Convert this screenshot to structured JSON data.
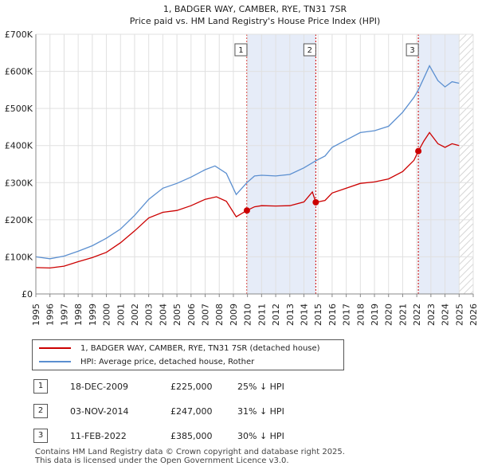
{
  "chart_data": {
    "type": "line",
    "title": "1, BADGER WAY, CAMBER, RYE, TN31 7SR",
    "subtitle": "Price paid vs. HM Land Registry's House Price Index (HPI)",
    "xlim": [
      1995,
      2026
    ],
    "ylim": [
      0,
      700000
    ],
    "x_ticks": [
      "1995",
      "1996",
      "1997",
      "1998",
      "1999",
      "2000",
      "2001",
      "2002",
      "2003",
      "2004",
      "2005",
      "2006",
      "2007",
      "2008",
      "2009",
      "2010",
      "2011",
      "2012",
      "2013",
      "2014",
      "2015",
      "2016",
      "2017",
      "2018",
      "2019",
      "2020",
      "2021",
      "2022",
      "2023",
      "2024",
      "2025",
      "2026"
    ],
    "y_ticks": [
      {
        "value": 0,
        "label": "£0"
      },
      {
        "value": 100000,
        "label": "£100K"
      },
      {
        "value": 200000,
        "label": "£200K"
      },
      {
        "value": 300000,
        "label": "£300K"
      },
      {
        "value": 400000,
        "label": "£400K"
      },
      {
        "value": 500000,
        "label": "£500K"
      },
      {
        "value": 600000,
        "label": "£600K"
      },
      {
        "value": 700000,
        "label": "£700K"
      }
    ],
    "grid": true,
    "legend_position": "bottom",
    "series": [
      {
        "name": "1, BADGER WAY, CAMBER, RYE, TN31 7SR (detached house)",
        "color": "#cc0000",
        "points": [
          [
            1995,
            71000
          ],
          [
            1996,
            70000
          ],
          [
            1997,
            75000
          ],
          [
            1998,
            87000
          ],
          [
            1999,
            98000
          ],
          [
            2000,
            112000
          ],
          [
            2001,
            138000
          ],
          [
            2002,
            170000
          ],
          [
            2003,
            205000
          ],
          [
            2004,
            220000
          ],
          [
            2005,
            225000
          ],
          [
            2006,
            238000
          ],
          [
            2007,
            255000
          ],
          [
            2007.8,
            262000
          ],
          [
            2008.5,
            250000
          ],
          [
            2009.2,
            208000
          ],
          [
            2009.96,
            225000
          ],
          [
            2010.5,
            235000
          ],
          [
            2011,
            238000
          ],
          [
            2012,
            237000
          ],
          [
            2013,
            238000
          ],
          [
            2014,
            248000
          ],
          [
            2014.6,
            275000
          ],
          [
            2014.84,
            247000
          ],
          [
            2015.5,
            252000
          ],
          [
            2016,
            272000
          ],
          [
            2017,
            285000
          ],
          [
            2018,
            298000
          ],
          [
            2019,
            302000
          ],
          [
            2020,
            310000
          ],
          [
            2021,
            330000
          ],
          [
            2021.8,
            360000
          ],
          [
            2022.11,
            385000
          ],
          [
            2022.5,
            412000
          ],
          [
            2022.9,
            435000
          ],
          [
            2023.5,
            405000
          ],
          [
            2024,
            395000
          ],
          [
            2024.5,
            405000
          ],
          [
            2025,
            400000
          ]
        ]
      },
      {
        "name": "HPI: Average price, detached house, Rother",
        "color": "#5b8fd0",
        "points": [
          [
            1995,
            100000
          ],
          [
            1996,
            95000
          ],
          [
            1997,
            102000
          ],
          [
            1998,
            115000
          ],
          [
            1999,
            130000
          ],
          [
            2000,
            150000
          ],
          [
            2001,
            175000
          ],
          [
            2002,
            212000
          ],
          [
            2003,
            255000
          ],
          [
            2004,
            285000
          ],
          [
            2005,
            298000
          ],
          [
            2006,
            315000
          ],
          [
            2007,
            335000
          ],
          [
            2007.7,
            345000
          ],
          [
            2008.5,
            325000
          ],
          [
            2009.2,
            268000
          ],
          [
            2009.96,
            300000
          ],
          [
            2010.5,
            318000
          ],
          [
            2011,
            320000
          ],
          [
            2012,
            318000
          ],
          [
            2013,
            322000
          ],
          [
            2014,
            340000
          ],
          [
            2014.84,
            359000
          ],
          [
            2015.5,
            372000
          ],
          [
            2016,
            395000
          ],
          [
            2017,
            415000
          ],
          [
            2018,
            435000
          ],
          [
            2019,
            440000
          ],
          [
            2020,
            452000
          ],
          [
            2021,
            490000
          ],
          [
            2021.8,
            530000
          ],
          [
            2022.11,
            550000
          ],
          [
            2022.6,
            590000
          ],
          [
            2022.9,
            615000
          ],
          [
            2023.5,
            575000
          ],
          [
            2024,
            558000
          ],
          [
            2024.5,
            572000
          ],
          [
            2025,
            568000
          ]
        ]
      }
    ],
    "sales": [
      {
        "label": "1",
        "x": 2009.96,
        "price": 225000
      },
      {
        "label": "2",
        "x": 2014.84,
        "price": 247000
      },
      {
        "label": "3",
        "x": 2022.11,
        "price": 385000
      }
    ],
    "shaded_spans": [
      [
        2009.96,
        2014.84
      ],
      [
        2022.11,
        2025.0
      ]
    ],
    "hatch_from": 2025.0
  },
  "legend": [
    {
      "label": "1, BADGER WAY, CAMBER, RYE, TN31 7SR (detached house)",
      "color": "#cc0000"
    },
    {
      "label": "HPI: Average price, detached house, Rother",
      "color": "#5b8fd0"
    }
  ],
  "sales_table": [
    {
      "num": "1",
      "date": "18-DEC-2009",
      "price": "£225,000",
      "hpi": "25% ↓ HPI"
    },
    {
      "num": "2",
      "date": "03-NOV-2014",
      "price": "£247,000",
      "hpi": "31% ↓ HPI"
    },
    {
      "num": "3",
      "date": "11-FEB-2022",
      "price": "£385,000",
      "hpi": "30% ↓ HPI"
    }
  ],
  "footer": {
    "line1": "Contains HM Land Registry data © Crown copyright and database right 2025.",
    "line2": "This data is licensed under the Open Government Licence v3.0."
  }
}
